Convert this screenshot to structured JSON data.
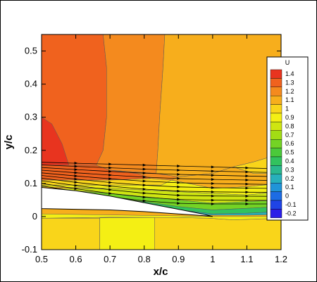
{
  "chart_data": {
    "type": "heatmap",
    "title": "",
    "xlabel": "x/c",
    "ylabel": "y/c",
    "xlim": [
      0.5,
      1.2
    ],
    "ylim": [
      -0.1,
      0.55
    ],
    "x_ticks": [
      0.5,
      0.6,
      0.7,
      0.8,
      0.9,
      1.0,
      1.1,
      1.2
    ],
    "x_tick_labels": [
      "0.5",
      "0.6",
      "0.7",
      "0.8",
      "0.9",
      "1",
      "1.1",
      "1.2"
    ],
    "y_ticks": [
      -0.1,
      0,
      0.1,
      0.2,
      0.3,
      0.4,
      0.5
    ],
    "y_tick_labels": [
      "-0.1",
      "0",
      "0.1",
      "0.2",
      "0.3",
      "0.4",
      "0.5"
    ],
    "legend": {
      "title": "U",
      "placement": "right",
      "levels": [
        1.4,
        1.3,
        1.2,
        1.1,
        1.0,
        0.9,
        0.8,
        0.7,
        0.6,
        0.5,
        0.4,
        0.3,
        0.2,
        0.1,
        0,
        -0.1,
        -0.2
      ],
      "labels": [
        "1.4",
        "1.3",
        "1.2",
        "1.1",
        "1",
        "0.9",
        "0.8",
        "0.7",
        "0.6",
        "0.5",
        "0.4",
        "0.3",
        "0.2",
        "0.1",
        "0",
        "-0.1",
        "-0.2"
      ],
      "colors": [
        "#e8341f",
        "#f0621e",
        "#f48a1e",
        "#f7ae1c",
        "#f9d51a",
        "#f4ef14",
        "#cfe512",
        "#a2dc14",
        "#74d324",
        "#4bc93a",
        "#32c25e",
        "#2ab88e",
        "#27b0bb",
        "#2094d8",
        "#1d6ce4",
        "#1f44e6",
        "#2a1ee8"
      ]
    },
    "regions": [
      {
        "u": 1.3,
        "poly": [
          [
            0.5,
            0.55
          ],
          [
            0.68,
            0.55
          ],
          [
            0.69,
            0.45
          ],
          [
            0.69,
            0.3
          ],
          [
            0.68,
            0.2
          ],
          [
            0.66,
            0.155
          ],
          [
            0.5,
            0.155
          ]
        ]
      },
      {
        "u": 1.2,
        "poly": [
          [
            0.68,
            0.55
          ],
          [
            0.86,
            0.55
          ],
          [
            0.855,
            0.45
          ],
          [
            0.845,
            0.3
          ],
          [
            0.84,
            0.2
          ],
          [
            0.835,
            0.13
          ],
          [
            0.7,
            0.14
          ],
          [
            0.66,
            0.155
          ],
          [
            0.68,
            0.2
          ],
          [
            0.69,
            0.3
          ],
          [
            0.69,
            0.45
          ]
        ]
      },
      {
        "u": 1.1,
        "poly": [
          [
            0.86,
            0.55
          ],
          [
            1.2,
            0.55
          ],
          [
            1.2,
            0.19
          ],
          [
            1.12,
            0.165
          ],
          [
            1.06,
            0.15
          ],
          [
            1.0,
            0.13
          ],
          [
            0.9,
            0.12
          ],
          [
            0.835,
            0.13
          ],
          [
            0.84,
            0.2
          ],
          [
            0.845,
            0.3
          ],
          [
            0.855,
            0.45
          ]
        ]
      },
      {
        "u": 1.0,
        "poly": [
          [
            1.06,
            0.15
          ],
          [
            1.12,
            0.165
          ],
          [
            1.2,
            0.19
          ],
          [
            1.2,
            0.13
          ],
          [
            1.12,
            0.13
          ]
        ]
      },
      {
        "u": 1.4,
        "poly": [
          [
            0.5,
            0.3
          ],
          [
            0.53,
            0.28
          ],
          [
            0.56,
            0.22
          ],
          [
            0.58,
            0.155
          ],
          [
            0.5,
            0.155
          ]
        ]
      },
      {
        "u": 1.3,
        "poly": [
          [
            0.5,
            0.155
          ],
          [
            0.62,
            0.155
          ],
          [
            0.66,
            0.155
          ],
          [
            0.7,
            0.14
          ],
          [
            0.78,
            0.13
          ],
          [
            0.82,
            0.115
          ],
          [
            0.7,
            0.11
          ],
          [
            0.6,
            0.11
          ],
          [
            0.5,
            0.11
          ]
        ]
      },
      {
        "u": 1.2,
        "poly": [
          [
            0.7,
            0.14
          ],
          [
            0.835,
            0.13
          ],
          [
            0.9,
            0.12
          ],
          [
            0.88,
            0.11
          ],
          [
            0.82,
            0.115
          ],
          [
            0.78,
            0.13
          ]
        ]
      },
      {
        "u": 1.1,
        "poly": [
          [
            0.9,
            0.12
          ],
          [
            1.0,
            0.13
          ],
          [
            1.06,
            0.15
          ],
          [
            1.12,
            0.13
          ],
          [
            1.2,
            0.13
          ],
          [
            1.2,
            0.1
          ],
          [
            1.1,
            0.09
          ],
          [
            1.0,
            0.085
          ],
          [
            0.88,
            0.11
          ]
        ]
      },
      {
        "u": 1.0,
        "poly": [
          [
            0.5,
            0.11
          ],
          [
            0.6,
            0.11
          ],
          [
            0.7,
            0.11
          ],
          [
            0.82,
            0.115
          ],
          [
            0.88,
            0.11
          ],
          [
            0.85,
            0.095
          ],
          [
            0.7,
            0.095
          ],
          [
            0.5,
            0.095
          ]
        ]
      },
      {
        "u": 0.9,
        "poly": [
          [
            0.5,
            0.095
          ],
          [
            0.7,
            0.095
          ],
          [
            0.85,
            0.095
          ],
          [
            0.88,
            0.11
          ],
          [
            1.0,
            0.085
          ],
          [
            1.1,
            0.09
          ],
          [
            1.2,
            0.1
          ],
          [
            1.2,
            0.075
          ],
          [
            1.1,
            0.065
          ],
          [
            1.0,
            0.07
          ],
          [
            0.9,
            0.075
          ],
          [
            0.7,
            0.085
          ],
          [
            0.5,
            0.09
          ]
        ]
      },
      {
        "u": 0.8,
        "poly": [
          [
            0.55,
            0.085
          ],
          [
            0.7,
            0.085
          ],
          [
            0.9,
            0.075
          ],
          [
            1.0,
            0.07
          ],
          [
            1.1,
            0.065
          ],
          [
            1.2,
            0.075
          ],
          [
            1.2,
            0.05
          ],
          [
            1.1,
            0.045
          ],
          [
            1.0,
            0.04
          ],
          [
            0.85,
            0.055
          ],
          [
            0.7,
            0.07
          ],
          [
            0.57,
            0.08
          ]
        ]
      },
      {
        "u": 0.6,
        "poly": [
          [
            0.57,
            0.08
          ],
          [
            0.7,
            0.07
          ],
          [
            0.85,
            0.055
          ],
          [
            1.0,
            0.04
          ],
          [
            1.1,
            0.045
          ],
          [
            1.2,
            0.05
          ],
          [
            1.2,
            0.03
          ],
          [
            1.1,
            0.025
          ],
          [
            1.0,
            0.02
          ],
          [
            0.9,
            0.03
          ],
          [
            0.8,
            0.045
          ],
          [
            0.7,
            0.055
          ],
          [
            0.62,
            0.07
          ]
        ]
      },
      {
        "u": 0.4,
        "poly": [
          [
            0.62,
            0.07
          ],
          [
            0.7,
            0.055
          ],
          [
            0.8,
            0.045
          ],
          [
            0.9,
            0.03
          ],
          [
            1.0,
            0.02
          ],
          [
            1.1,
            0.025
          ],
          [
            1.2,
            0.03
          ],
          [
            1.2,
            0.015
          ],
          [
            1.1,
            0.01
          ],
          [
            1.0,
            0.008
          ],
          [
            0.92,
            0.018
          ],
          [
            0.85,
            0.03
          ],
          [
            0.75,
            0.045
          ],
          [
            0.68,
            0.058
          ]
        ]
      },
      {
        "u": 0.2,
        "poly": [
          [
            0.92,
            0.018
          ],
          [
            1.0,
            0.008
          ],
          [
            1.1,
            0.01
          ],
          [
            1.2,
            0.015
          ],
          [
            1.2,
            0.006
          ],
          [
            1.1,
            0.004
          ],
          [
            1.0,
            0.004
          ],
          [
            0.96,
            0.008
          ]
        ]
      },
      {
        "u": 1.0,
        "poly": [
          [
            0.5,
            -0.1
          ],
          [
            1.2,
            -0.1
          ],
          [
            1.2,
            -0.005
          ],
          [
            1.06,
            -0.01
          ],
          [
            0.99,
            -0.005
          ],
          [
            0.9,
            -0.003
          ],
          [
            0.7,
            -0.002
          ],
          [
            0.5,
            -0.005
          ]
        ]
      },
      {
        "u": 0.9,
        "poly": [
          [
            0.5,
            -0.005
          ],
          [
            0.7,
            -0.002
          ],
          [
            0.9,
            -0.003
          ],
          [
            0.99,
            -0.005
          ],
          [
            1.06,
            -0.01
          ],
          [
            1.2,
            -0.005
          ],
          [
            1.2,
            0.0
          ],
          [
            1.1,
            0.0
          ],
          [
            1.0,
            0.0
          ],
          [
            0.9,
            0.002
          ],
          [
            0.7,
            0.005
          ],
          [
            0.5,
            0.008
          ]
        ]
      },
      {
        "u": 1.0,
        "poly": [
          [
            0.5,
            -0.1
          ],
          [
            0.67,
            -0.1
          ],
          [
            0.67,
            -0.005
          ],
          [
            0.5,
            -0.005
          ]
        ]
      },
      {
        "u": 0.9,
        "poly": [
          [
            0.67,
            -0.1
          ],
          [
            0.83,
            -0.1
          ],
          [
            0.83,
            -0.003
          ],
          [
            0.67,
            -0.004
          ]
        ]
      }
    ],
    "airfoil": [
      [
        0.5,
        0.088
      ],
      [
        0.6,
        0.078
      ],
      [
        0.7,
        0.062
      ],
      [
        0.8,
        0.042
      ],
      [
        0.9,
        0.022
      ],
      [
        0.97,
        0.008
      ],
      [
        1.0,
        0.0
      ],
      [
        0.97,
        0.003
      ],
      [
        0.9,
        0.008
      ],
      [
        0.8,
        0.015
      ],
      [
        0.7,
        0.02
      ],
      [
        0.6,
        0.022
      ],
      [
        0.5,
        0.024
      ]
    ],
    "streamline_y0": [
      0.093,
      0.1,
      0.108,
      0.116,
      0.124,
      0.132,
      0.14,
      0.148,
      0.156,
      0.164
    ],
    "streamline_x": [
      0.5,
      0.6,
      0.7,
      0.8,
      0.9,
      1.0,
      1.1,
      1.2
    ]
  }
}
